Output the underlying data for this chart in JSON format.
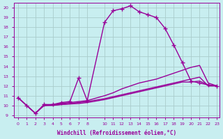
{
  "xlabel": "Windchill (Refroidissement éolien,°C)",
  "background_color": "#c8eef0",
  "line_color": "#990099",
  "grid_color": "#aacccc",
  "xlim": [
    -0.5,
    23.3
  ],
  "ylim": [
    8.8,
    20.5
  ],
  "yticks": [
    9,
    10,
    11,
    12,
    13,
    14,
    15,
    16,
    17,
    18,
    19,
    20
  ],
  "xticks": [
    0,
    1,
    2,
    3,
    4,
    5,
    6,
    7,
    8,
    10,
    11,
    12,
    13,
    14,
    15,
    16,
    17,
    18,
    19,
    20,
    21,
    22,
    23
  ],
  "line1_x": [
    0,
    1,
    2,
    3,
    4,
    5,
    6,
    7,
    8,
    10,
    11,
    12,
    13,
    14,
    15,
    16,
    17,
    18,
    19,
    20,
    21,
    22,
    23
  ],
  "line1_y": [
    10.8,
    10.0,
    9.2,
    10.1,
    10.1,
    10.3,
    10.4,
    12.8,
    10.5,
    18.5,
    19.7,
    19.9,
    20.2,
    19.6,
    19.3,
    19.0,
    17.9,
    16.2,
    14.4,
    12.5,
    12.3,
    12.1,
    12.0
  ],
  "line2_x": [
    0,
    1,
    2,
    3,
    4,
    5,
    6,
    7,
    8,
    10,
    11,
    12,
    13,
    14,
    15,
    16,
    17,
    18,
    19,
    20,
    21,
    22,
    23
  ],
  "line2_y": [
    10.8,
    10.0,
    9.2,
    10.0,
    10.1,
    10.2,
    10.3,
    10.4,
    10.5,
    11.0,
    11.3,
    11.7,
    12.0,
    12.3,
    12.5,
    12.7,
    13.0,
    13.3,
    13.6,
    13.9,
    14.1,
    12.3,
    12.0
  ],
  "line3_x": [
    0,
    1,
    2,
    3,
    4,
    5,
    6,
    7,
    8,
    10,
    11,
    12,
    13,
    14,
    15,
    16,
    17,
    18,
    19,
    20,
    21,
    22,
    23
  ],
  "line3_y": [
    10.8,
    10.0,
    9.2,
    10.0,
    10.05,
    10.1,
    10.2,
    10.3,
    10.4,
    10.7,
    10.9,
    11.1,
    11.3,
    11.5,
    11.7,
    11.9,
    12.1,
    12.3,
    12.5,
    12.7,
    12.9,
    12.0,
    12.0
  ],
  "line4_x": [
    2,
    3,
    4,
    5,
    6,
    7,
    8,
    10,
    11,
    12,
    13,
    14,
    15,
    16,
    17,
    18,
    19,
    20,
    21,
    22,
    23
  ],
  "line4_y": [
    9.2,
    10.0,
    10.0,
    10.1,
    10.15,
    10.2,
    10.3,
    10.6,
    10.8,
    11.0,
    11.2,
    11.4,
    11.6,
    11.8,
    12.0,
    12.2,
    12.4,
    12.4,
    12.5,
    12.1,
    12.0
  ]
}
